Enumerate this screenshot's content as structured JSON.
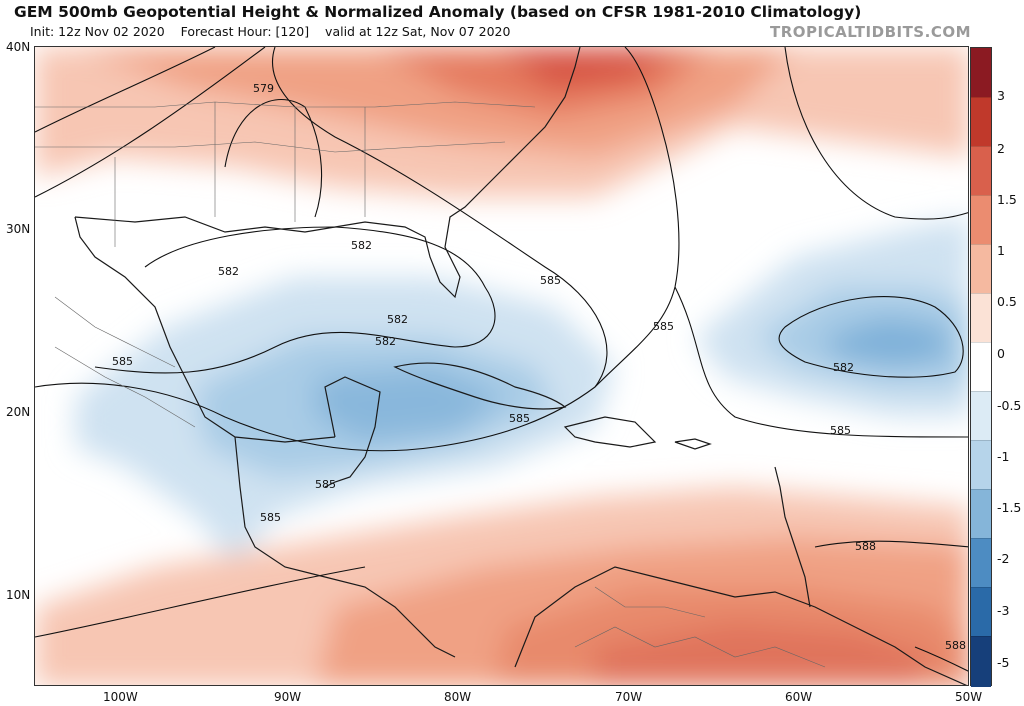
{
  "header": {
    "title": "GEM 500mb Geopotential Height & Normalized Anomaly (based on CFSR 1981-2010 Climatology)",
    "init": "Init: 12z Nov 02 2020",
    "forecast": "Forecast Hour: [120]",
    "valid": "valid at 12z Sat, Nov 07 2020",
    "brand": "TROPICALTIDBITS.COM"
  },
  "axes": {
    "lat_labels": [
      "40N",
      "30N",
      "20N",
      "10N"
    ],
    "lon_labels": [
      "100W",
      "90W",
      "80W",
      "70W",
      "60W",
      "50W"
    ]
  },
  "colorbar": {
    "labels": [
      "3",
      "2",
      "1.5",
      "1",
      "0.5",
      "0",
      "-0.5",
      "-1",
      "-1.5",
      "-2",
      "-3",
      "-5"
    ],
    "colors": [
      "#8b1a22",
      "#c0392b",
      "#d9604c",
      "#eb8c70",
      "#f5b9a0",
      "#fbe2d6",
      "#ffffff",
      "#dcebf5",
      "#b6d4ea",
      "#85b5d9",
      "#4d8cc2",
      "#2a6aa8",
      "#163f7a"
    ]
  },
  "contours": {
    "labels": [
      "579",
      "582",
      "582",
      "582",
      "582",
      "585",
      "585",
      "585",
      "585",
      "585",
      "585",
      "582",
      "585",
      "588",
      "588"
    ]
  }
}
